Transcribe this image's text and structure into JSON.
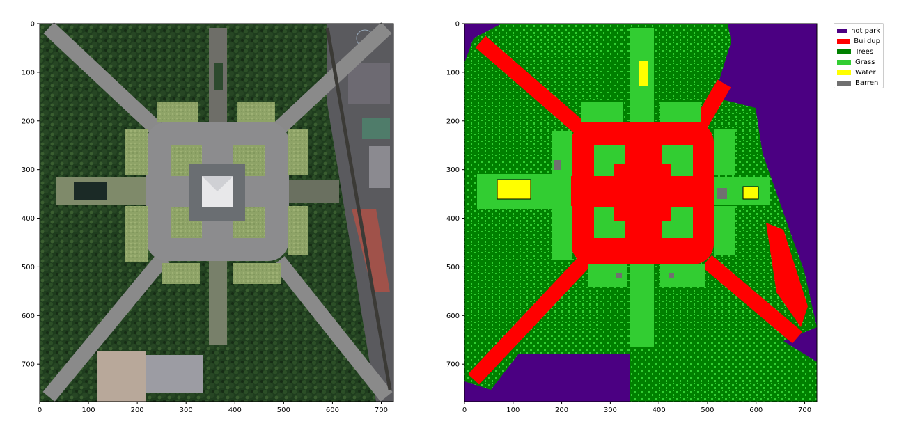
{
  "axes": {
    "x_ticks": [
      "0",
      "100",
      "200",
      "300",
      "400",
      "500",
      "600",
      "700"
    ],
    "y_ticks": [
      "0",
      "100",
      "200",
      "300",
      "400",
      "500",
      "600",
      "700"
    ],
    "x_range": [
      0,
      725
    ],
    "y_range": [
      0,
      777
    ]
  },
  "left_panel": {
    "content": "aerial satellite image of city park with central monument and diagonal avenues"
  },
  "right_panel": {
    "content": "land cover classification map"
  },
  "legend": {
    "placement": "upper-left, outside right plot",
    "items": [
      {
        "label": "not park",
        "color": "#4b0082"
      },
      {
        "label": "Buildup",
        "color": "#ff0000"
      },
      {
        "label": "Trees",
        "color": "#008000"
      },
      {
        "label": "Grass",
        "color": "#32cd32"
      },
      {
        "label": "Water",
        "color": "#ffff00"
      },
      {
        "label": "Barren",
        "color": "#707070"
      }
    ]
  },
  "colors": {
    "not_park": "#4b0082",
    "buildup": "#ff0000",
    "trees": "#008000",
    "grass": "#32cd32",
    "water": "#ffff00",
    "barren": "#707070"
  }
}
